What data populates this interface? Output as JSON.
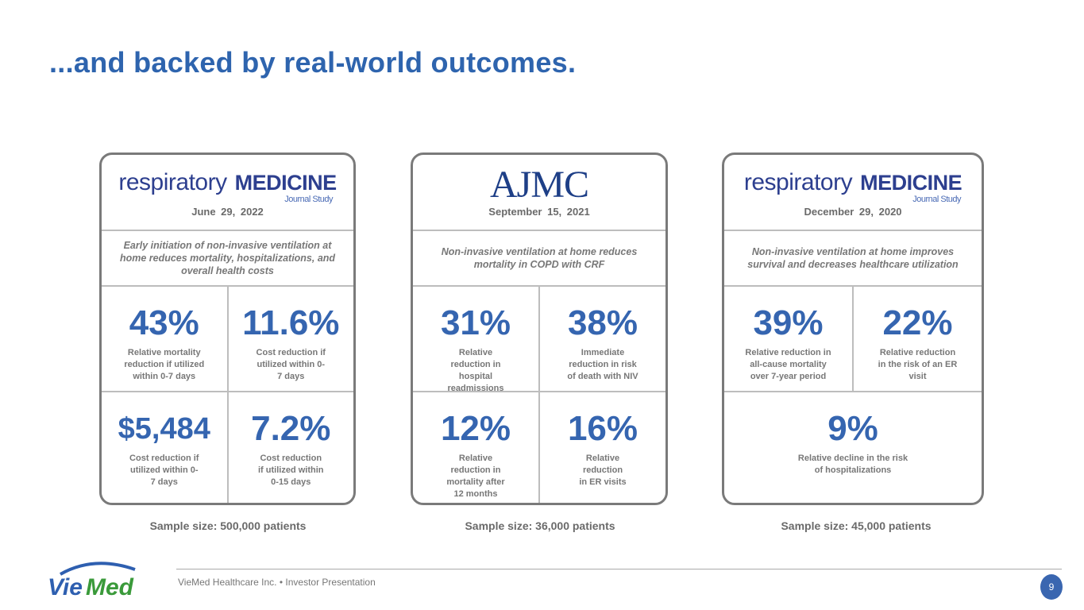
{
  "title": "...and backed by real-world outcomes.",
  "cards": [
    {
      "logo": {
        "word1": "respiratory",
        "word2": "MEDICINE",
        "sub": "Journal Study"
      },
      "date": "June 29, 2022",
      "description": "Early initiation of non-invasive ventilation at home reduces mortality, hospitalizations, and overall health costs",
      "stats": [
        {
          "value": "43%",
          "label": "Relative mortality reduction if utilized within 0-7 days"
        },
        {
          "value": "11.6%",
          "label": "Cost reduction if utilized within 0-7 days"
        },
        {
          "value": "$5,484",
          "label": "Cost reduction if utilized within 0-7 days"
        },
        {
          "value": "7.2%",
          "label": "Cost reduction if utilized within 0-15 days"
        }
      ],
      "sample": "Sample size: 500,000 patients"
    },
    {
      "logo": {
        "word1": "AJMC"
      },
      "date": "September 15, 2021",
      "description": "Non-invasive ventilation at home reduces mortality in COPD with CRF",
      "stats": [
        {
          "value": "31%",
          "label": "Relative reduction in hospital readmissions"
        },
        {
          "value": "38%",
          "label": "Immediate reduction in risk of death with NIV"
        },
        {
          "value": "12%",
          "label": "Relative reduction in mortality after 12 months"
        },
        {
          "value": "16%",
          "label": "Relative reduction in ER visits"
        }
      ],
      "sample": "Sample size: 36,000 patients"
    },
    {
      "logo": {
        "word1": "respiratory",
        "word2": "MEDICINE",
        "sub": "Journal Study"
      },
      "date": "December 29, 2020",
      "description": "Non-invasive ventilation at home improves survival and decreases healthcare utilization",
      "stats": [
        {
          "value": "39%",
          "label": "Relative reduction in all-cause mortality over 7-year period"
        },
        {
          "value": "22%",
          "label": "Relative reduction in the risk of an ER visit"
        },
        {
          "value": "9%",
          "label": "Relative decline in the risk of hospitalizations"
        }
      ],
      "sample": "Sample size: 45,000 patients"
    }
  ],
  "footer": {
    "logo": "VieMed",
    "text": "VieMed Healthcare Inc. • Investor Presentation",
    "page": "9"
  },
  "colors": {
    "accent": "#3565b0",
    "logo_green": "#3a9a3a"
  }
}
